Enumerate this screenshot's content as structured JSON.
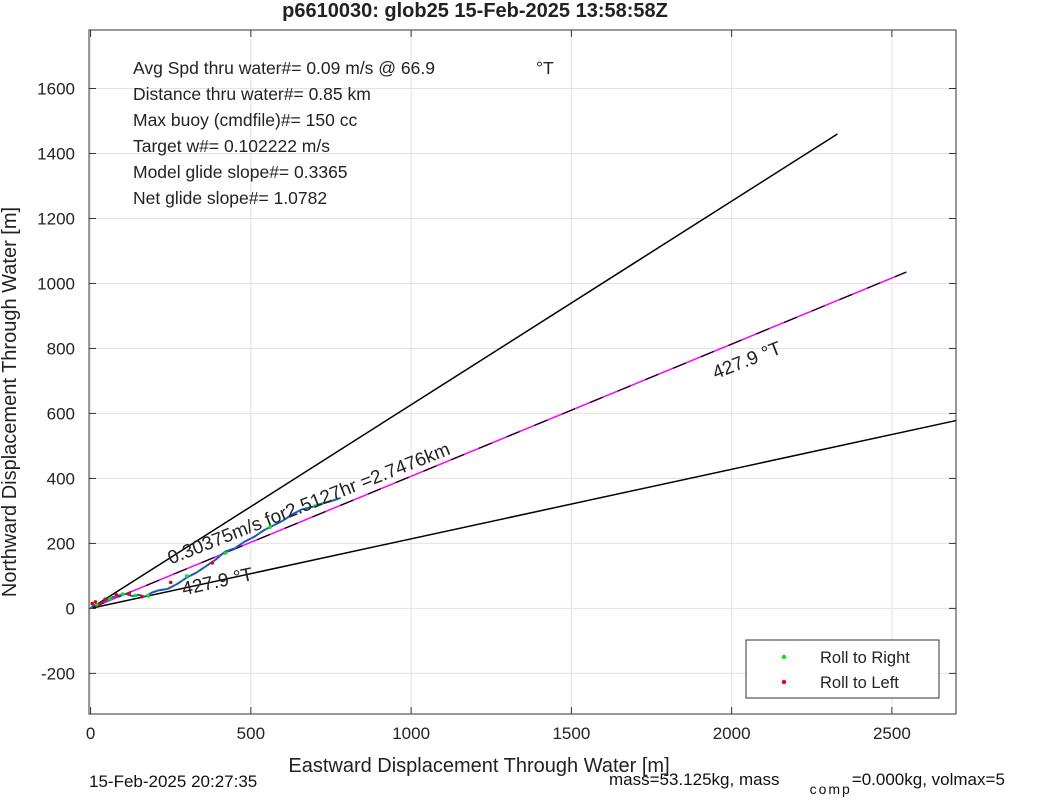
{
  "chart_data": {
    "type": "line",
    "title": "p6610030: glob25 15-Feb-2025 13:58:58Z",
    "xlabel": "Eastward Displacement Through Water [m]",
    "ylabel": "Northward Displacement Through Water [m]",
    "xlim": [
      -5,
      2700
    ],
    "ylim": [
      -325,
      1780
    ],
    "xticks": [
      0,
      500,
      1000,
      1500,
      2000,
      2500
    ],
    "yticks": [
      -200,
      0,
      200,
      400,
      600,
      800,
      1000,
      1200,
      1400,
      1600
    ],
    "grid": true,
    "info_lines": [
      {
        "label": "Avg Spd thru water#=  0.09 m/s @  66.9",
        "unit": "°T"
      },
      {
        "label": "Distance thru water#=  0.85 km",
        "unit": ""
      },
      {
        "label": "Max buoy (cmdfile)#= 150 cc",
        "unit": ""
      },
      {
        "label": "Target w#= 0.102222 m/s",
        "unit": ""
      },
      {
        "label": "Model glide slope#= 0.3365",
        "unit": ""
      },
      {
        "label": "Net glide slope#= 1.0782",
        "unit": ""
      }
    ],
    "reference_lines": [
      {
        "name": "upper-bound",
        "color": "#000000",
        "x": [
          0,
          2330
        ],
        "y": [
          0,
          1460
        ]
      },
      {
        "name": "lower-bound",
        "color": "#000000",
        "x": [
          0,
          2700
        ],
        "y": [
          0,
          578
        ]
      },
      {
        "name": "mean-heading",
        "color": "#ff00ff",
        "dashed_black": true,
        "x": [
          0,
          2545
        ],
        "y": [
          0,
          1035
        ]
      }
    ],
    "track": {
      "color": "#1f4fd0",
      "x": [
        0,
        10,
        20,
        35,
        50,
        70,
        90,
        110,
        130,
        150,
        170,
        190,
        210,
        240,
        270,
        300,
        330,
        360,
        390,
        420,
        450,
        480,
        510,
        540,
        570,
        600,
        630,
        660,
        690,
        720,
        750,
        780
      ],
      "y": [
        0,
        10,
        8,
        18,
        25,
        35,
        40,
        45,
        38,
        42,
        36,
        48,
        55,
        60,
        75,
        95,
        110,
        130,
        150,
        175,
        185,
        205,
        220,
        240,
        255,
        270,
        290,
        305,
        312,
        322,
        330,
        340
      ]
    },
    "roll_right_points": {
      "x": [
        20,
        60,
        100,
        140,
        180,
        300,
        420,
        560,
        700
      ],
      "y": [
        12,
        30,
        44,
        40,
        38,
        100,
        170,
        250,
        315
      ]
    },
    "roll_left_points": {
      "x": [
        5,
        15,
        30,
        45,
        80,
        120,
        160,
        250,
        380
      ],
      "y": [
        15,
        20,
        12,
        28,
        42,
        46,
        36,
        80,
        140
      ]
    },
    "annotations": [
      {
        "text": "0.30375m/s for2.5127hr =2.7476km",
        "x": 250,
        "y": 135,
        "angle": 21.5
      },
      {
        "text": "427.9  °T",
        "x": 290,
        "y": 40,
        "angle": 12.5
      },
      {
        "text": "427.9  °T",
        "x": 1950,
        "y": 705,
        "angle": 21.5
      }
    ],
    "legend": {
      "position": "bottom-right",
      "entries": [
        {
          "label": "Roll to Right",
          "color": "#00ee00"
        },
        {
          "label": "Roll to Left",
          "color": "#ee0000"
        }
      ]
    }
  },
  "footer": {
    "timestamp": "15-Feb-2025 20:27:35",
    "mass_prefix": "mass=53.125kg, mass",
    "mass_sub": "comp",
    "mass_suffix": "=0.000kg, volmax=5"
  }
}
